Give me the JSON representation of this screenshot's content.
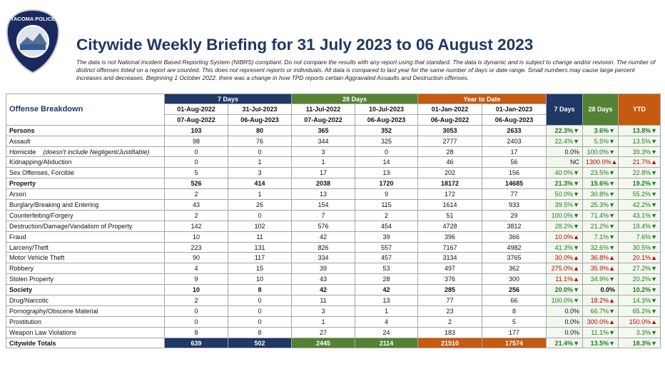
{
  "header": {
    "logo_text": "TACOMA POLICE",
    "title": "Citywide Weekly Briefing for 31 July 2023 to 06 August 2023",
    "disclaimer": "The data is not National Incident Based Reporting System (NIBRS) compliant.  Do not compare the results with any report using that standard.  The data is dynamic and is subject to change and/or revision. The number of distinct offenses listed on a report are counted.  This does not represent reports or individuals.  All data is compared to last year for the same number of days or date range.  Small numbers may cause large percent increases and decreases.  Beginning 1 October 2022, there was a change in how TPD reports certain Aggravated Assaults and Destruction offenses."
  },
  "table": {
    "row_header": "Offense Breakdown",
    "groups": [
      "7 Days",
      "28 Days",
      "Year to Date"
    ],
    "change_headers": [
      "7 Days",
      "28 Days",
      "YTD"
    ],
    "start_dates": [
      "01-Aug-2022",
      "31-Jul-2023",
      "11-Jul-2022",
      "10-Jul-2023",
      "01-Jan-2022",
      "01-Jan-2023"
    ],
    "end_dates": [
      "07-Aug-2022",
      "06-Aug-2023",
      "07-Aug-2022",
      "06-Aug-2023",
      "06-Aug-2022",
      "06-Aug-2023"
    ],
    "rows": [
      {
        "label": "Persons",
        "style": "category",
        "values": [
          103,
          80,
          365,
          352,
          3053,
          2633
        ],
        "changes": [
          "22.3%▼",
          "3.6%▼",
          "13.8%▼"
        ]
      },
      {
        "label": "Assault",
        "style": "item",
        "values": [
          98,
          76,
          344,
          325,
          2777,
          2403
        ],
        "changes": [
          "22.4%▼",
          "5.5%▼",
          "13.5%▼"
        ]
      },
      {
        "label": "Homicide",
        "note": "(doesn't include Negligent/Justifiable)",
        "style": "item",
        "values": [
          0,
          0,
          3,
          0,
          28,
          17
        ],
        "changes": [
          "0.0%",
          "100.0%▼",
          "39.3%▼"
        ]
      },
      {
        "label": "Kidnapping/Abduction",
        "style": "item",
        "values": [
          0,
          1,
          1,
          14,
          46,
          56
        ],
        "changes": [
          "NC",
          "1300.0%▲",
          "21.7%▲"
        ]
      },
      {
        "label": "Sex Offenses, Forcible",
        "style": "item",
        "values": [
          5,
          3,
          17,
          13,
          202,
          156
        ],
        "changes": [
          "40.0%▼",
          "23.5%▼",
          "22.8%▼"
        ]
      },
      {
        "label": "Property",
        "style": "category",
        "values": [
          526,
          414,
          2038,
          1720,
          18172,
          14685
        ],
        "changes": [
          "21.3%▼",
          "15.6%▼",
          "19.2%▼"
        ]
      },
      {
        "label": "Arson",
        "style": "item",
        "values": [
          2,
          1,
          13,
          9,
          172,
          77
        ],
        "changes": [
          "50.0%▼",
          "30.8%▼",
          "55.2%▼"
        ]
      },
      {
        "label": "Burglary/Breaking and Entering",
        "style": "item",
        "values": [
          43,
          26,
          154,
          115,
          1614,
          933
        ],
        "changes": [
          "39.5%▼",
          "25.3%▼",
          "42.2%▼"
        ]
      },
      {
        "label": "Counterfeiting/Forgery",
        "style": "item",
        "values": [
          2,
          0,
          7,
          2,
          51,
          29
        ],
        "changes": [
          "100.0%▼",
          "71.4%▼",
          "43.1%▼"
        ]
      },
      {
        "label": "Destruction/Damage/Vandalism of Property",
        "style": "item",
        "values": [
          142,
          102,
          576,
          454,
          4728,
          3812
        ],
        "changes": [
          "28.2%▼",
          "21.2%▼",
          "19.4%▼"
        ]
      },
      {
        "label": "Fraud",
        "style": "item",
        "values": [
          10,
          11,
          42,
          39,
          396,
          366
        ],
        "changes": [
          "10.0%▲",
          "7.1%▼",
          "7.6%▼"
        ]
      },
      {
        "label": "Larceny/Theft",
        "style": "item",
        "values": [
          223,
          131,
          826,
          557,
          7167,
          4982
        ],
        "changes": [
          "41.3%▼",
          "32.6%▼",
          "30.5%▼"
        ]
      },
      {
        "label": "Motor Vehicle Theft",
        "style": "item",
        "values": [
          90,
          117,
          334,
          457,
          3134,
          3765
        ],
        "changes": [
          "30.0%▲",
          "36.8%▲",
          "20.1%▲"
        ]
      },
      {
        "label": "Robbery",
        "style": "item",
        "values": [
          4,
          15,
          39,
          53,
          497,
          362
        ],
        "changes": [
          "275.0%▲",
          "35.9%▲",
          "27.2%▼"
        ]
      },
      {
        "label": "Stolen Property",
        "style": "item",
        "values": [
          9,
          10,
          43,
          28,
          376,
          300
        ],
        "changes": [
          "11.1%▲",
          "34.9%▼",
          "20.2%▼"
        ]
      },
      {
        "label": "Society",
        "style": "category",
        "values": [
          10,
          8,
          42,
          42,
          285,
          256
        ],
        "changes": [
          "20.0%▼",
          "0.0%",
          "10.2%▼"
        ]
      },
      {
        "label": "Drug/Narcotic",
        "style": "item",
        "values": [
          2,
          0,
          11,
          13,
          77,
          66
        ],
        "changes": [
          "100.0%▼",
          "18.2%▲",
          "14.3%▼"
        ]
      },
      {
        "label": "Pornography/Obscene Material",
        "style": "item",
        "values": [
          0,
          0,
          3,
          1,
          23,
          8
        ],
        "changes": [
          "0.0%",
          "66.7%▼",
          "65.2%▼"
        ]
      },
      {
        "label": "Prostitution",
        "style": "item",
        "values": [
          0,
          0,
          1,
          4,
          2,
          5
        ],
        "changes": [
          "0.0%",
          "300.0%▲",
          "150.0%▲"
        ]
      },
      {
        "label": "Weapon Law Violations",
        "style": "item",
        "values": [
          8,
          8,
          27,
          24,
          183,
          177
        ],
        "changes": [
          "0.0%",
          "11.1%▼",
          "3.3%▼"
        ]
      },
      {
        "label": "Citywide Totals",
        "style": "total",
        "values": [
          639,
          502,
          2445,
          2114,
          21510,
          17574
        ],
        "changes": [
          "21.4%▼",
          "13.5%▼",
          "18.3%▼"
        ]
      }
    ]
  }
}
